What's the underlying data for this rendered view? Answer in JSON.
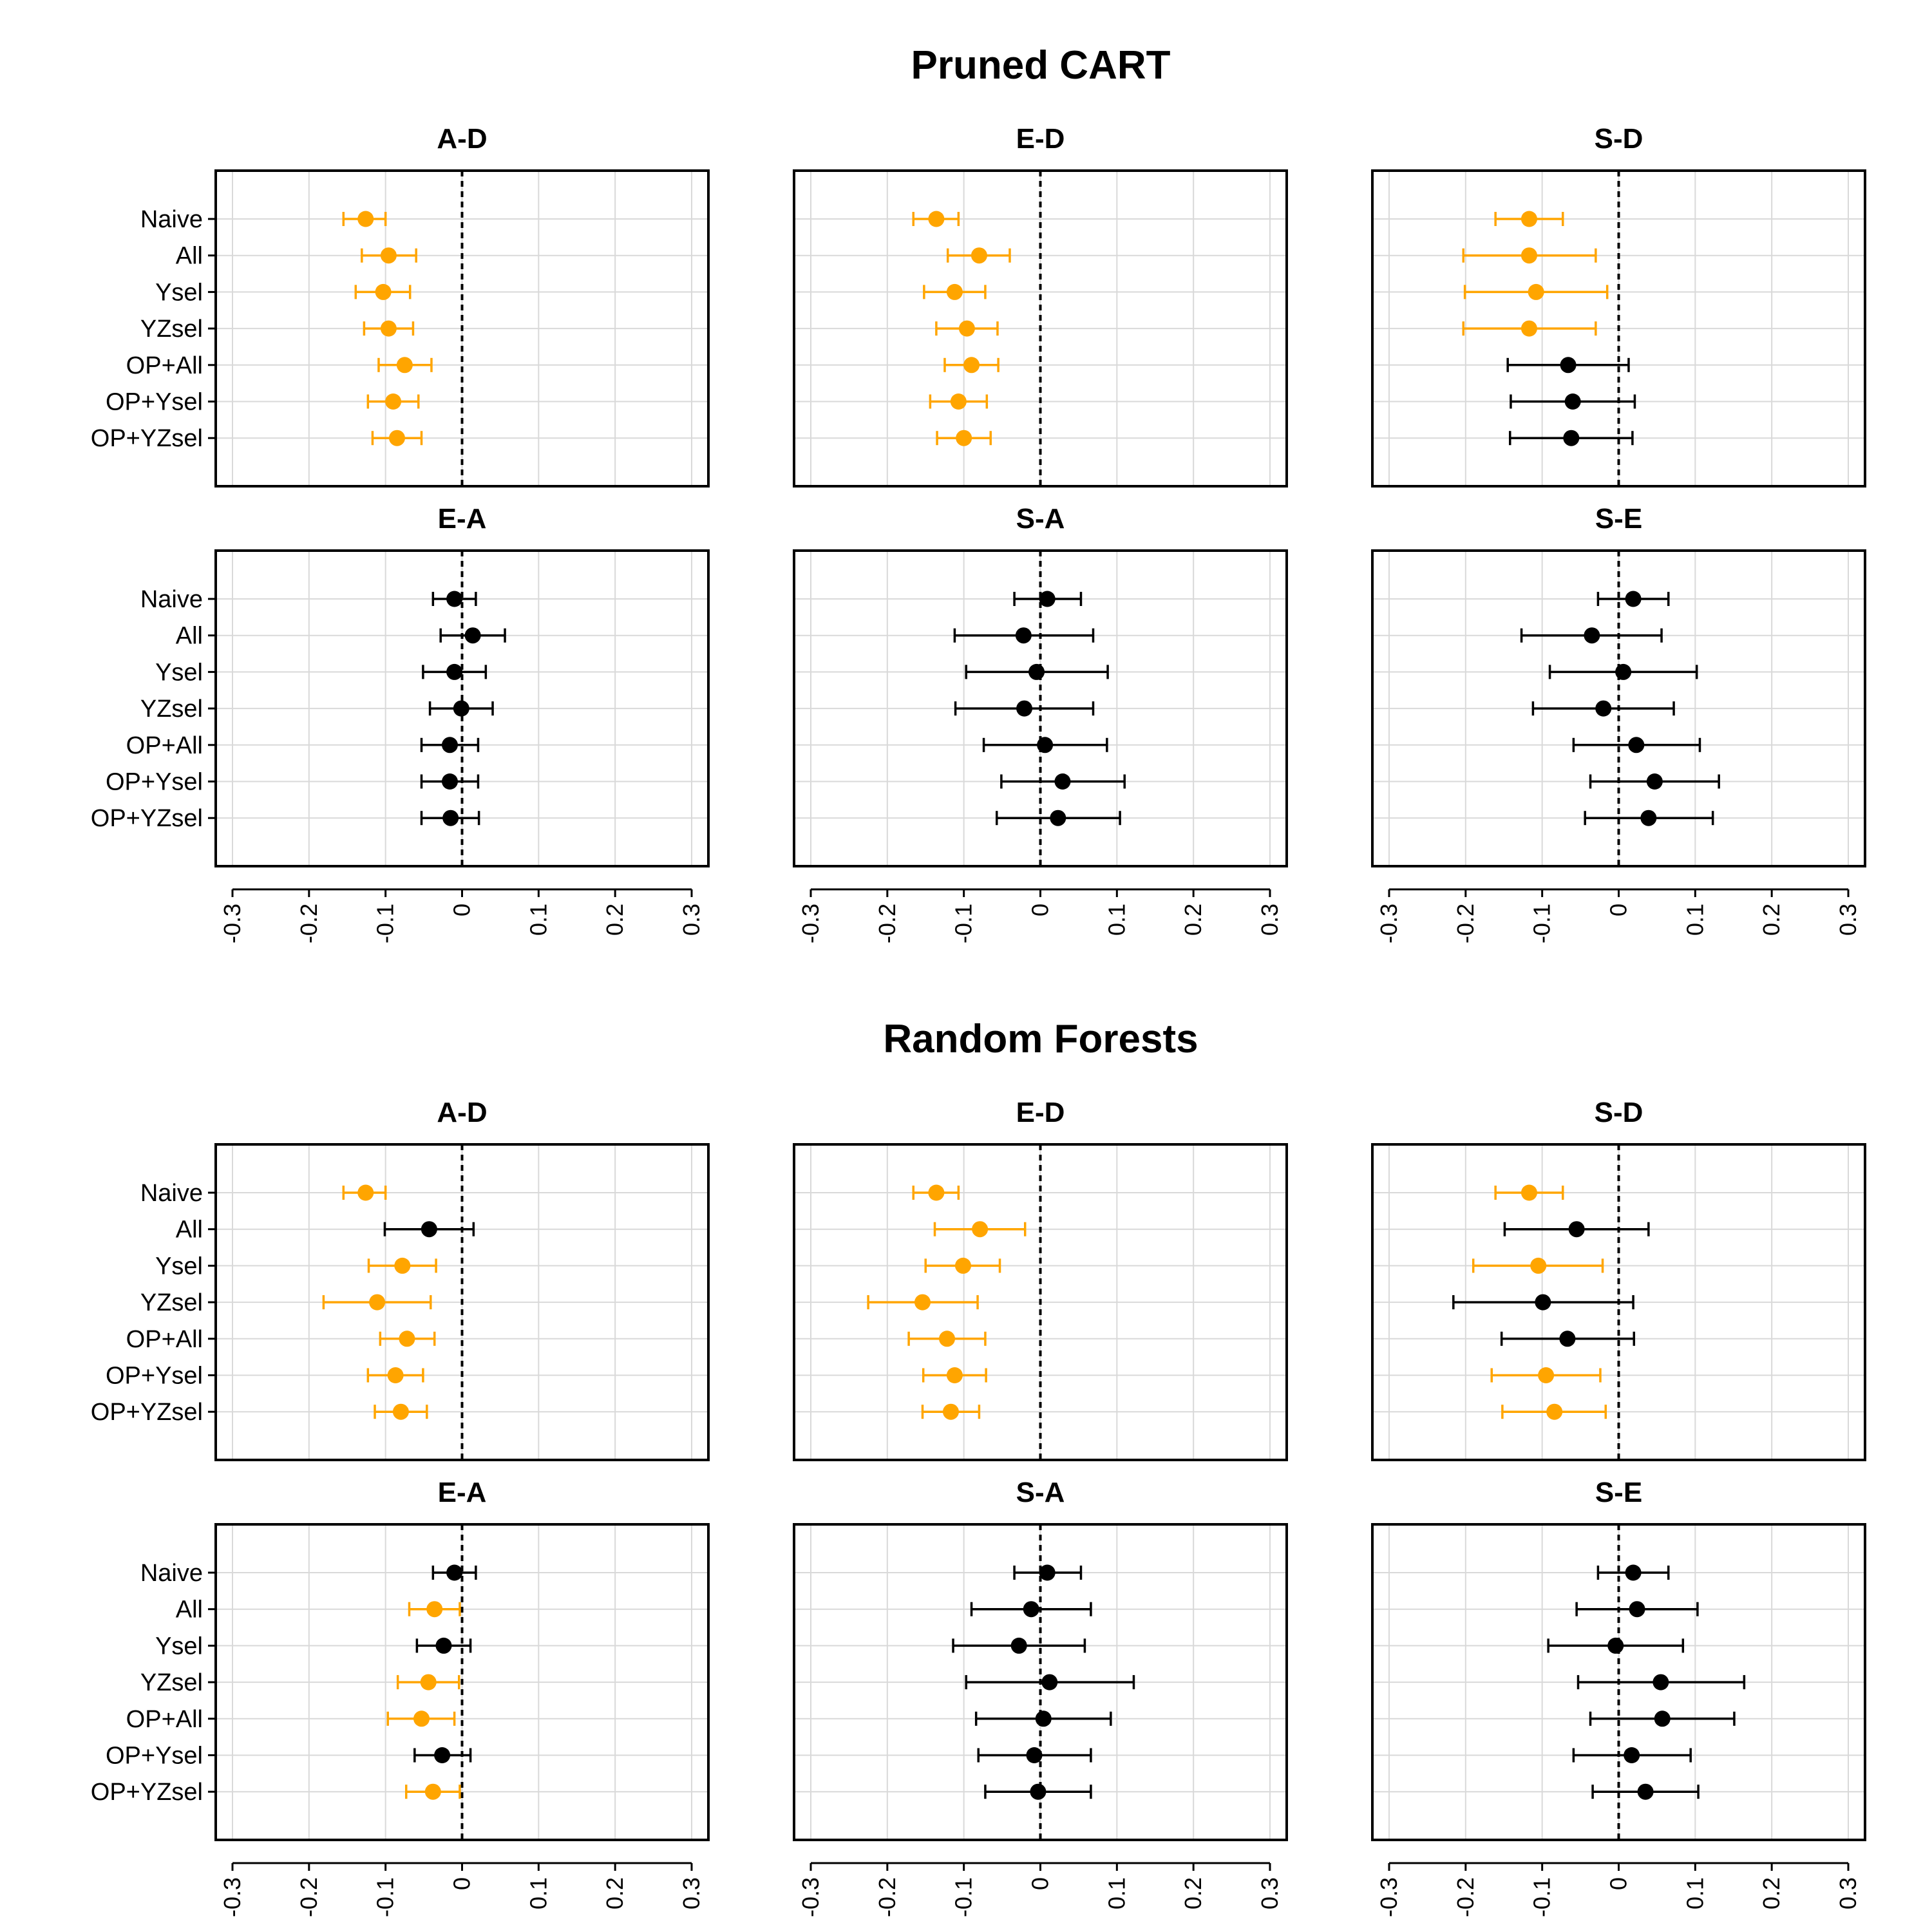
{
  "chart_data": {
    "type": "forest",
    "categories": [
      "Naive",
      "All",
      "Ysel",
      "YZsel",
      "OP+All",
      "OP+Ysel",
      "OP+YZsel"
    ],
    "xlim": [
      -0.3,
      0.3
    ],
    "xticks": [
      "-0.3",
      "-0.2",
      "-0.1",
      "0",
      "0.1",
      "0.2",
      "0.3"
    ],
    "reference_line": 0,
    "colors": {
      "significant": "#FFA500",
      "not_significant": "#000000",
      "grid": "#d9d9d9",
      "frame": "#000000"
    },
    "sections": [
      {
        "title": "Pruned CART",
        "panels": [
          {
            "title": "A-D",
            "points": [
              {
                "est": -0.126,
                "lo": -0.155,
                "hi": -0.1,
                "sig": true
              },
              {
                "est": -0.096,
                "lo": -0.131,
                "hi": -0.06,
                "sig": true
              },
              {
                "est": -0.103,
                "lo": -0.139,
                "hi": -0.068,
                "sig": true
              },
              {
                "est": -0.096,
                "lo": -0.128,
                "hi": -0.064,
                "sig": true
              },
              {
                "est": -0.075,
                "lo": -0.109,
                "hi": -0.04,
                "sig": true
              },
              {
                "est": -0.09,
                "lo": -0.123,
                "hi": -0.057,
                "sig": true
              },
              {
                "est": -0.085,
                "lo": -0.117,
                "hi": -0.053,
                "sig": true
              }
            ]
          },
          {
            "title": "E-D",
            "points": [
              {
                "est": -0.136,
                "lo": -0.166,
                "hi": -0.107,
                "sig": true
              },
              {
                "est": -0.08,
                "lo": -0.121,
                "hi": -0.04,
                "sig": true
              },
              {
                "est": -0.112,
                "lo": -0.152,
                "hi": -0.072,
                "sig": true
              },
              {
                "est": -0.096,
                "lo": -0.136,
                "hi": -0.056,
                "sig": true
              },
              {
                "est": -0.09,
                "lo": -0.125,
                "hi": -0.055,
                "sig": true
              },
              {
                "est": -0.107,
                "lo": -0.144,
                "hi": -0.07,
                "sig": true
              },
              {
                "est": -0.1,
                "lo": -0.135,
                "hi": -0.065,
                "sig": true
              }
            ]
          },
          {
            "title": "S-D",
            "points": [
              {
                "est": -0.117,
                "lo": -0.161,
                "hi": -0.073,
                "sig": true
              },
              {
                "est": -0.117,
                "lo": -0.203,
                "hi": -0.03,
                "sig": true
              },
              {
                "est": -0.108,
                "lo": -0.201,
                "hi": -0.015,
                "sig": true
              },
              {
                "est": -0.117,
                "lo": -0.203,
                "hi": -0.03,
                "sig": true
              },
              {
                "est": -0.066,
                "lo": -0.145,
                "hi": 0.013,
                "sig": false
              },
              {
                "est": -0.06,
                "lo": -0.141,
                "hi": 0.021,
                "sig": false
              },
              {
                "est": -0.062,
                "lo": -0.142,
                "hi": 0.018,
                "sig": false
              }
            ]
          },
          {
            "title": "E-A",
            "points": [
              {
                "est": -0.01,
                "lo": -0.038,
                "hi": 0.018,
                "sig": false
              },
              {
                "est": 0.014,
                "lo": -0.028,
                "hi": 0.056,
                "sig": false
              },
              {
                "est": -0.01,
                "lo": -0.051,
                "hi": 0.031,
                "sig": false
              },
              {
                "est": -0.001,
                "lo": -0.042,
                "hi": 0.04,
                "sig": false
              },
              {
                "est": -0.016,
                "lo": -0.053,
                "hi": 0.021,
                "sig": false
              },
              {
                "est": -0.016,
                "lo": -0.053,
                "hi": 0.021,
                "sig": false
              },
              {
                "est": -0.015,
                "lo": -0.053,
                "hi": 0.022,
                "sig": false
              }
            ]
          },
          {
            "title": "S-A",
            "points": [
              {
                "est": 0.009,
                "lo": -0.034,
                "hi": 0.053,
                "sig": false
              },
              {
                "est": -0.022,
                "lo": -0.112,
                "hi": 0.069,
                "sig": false
              },
              {
                "est": -0.005,
                "lo": -0.097,
                "hi": 0.088,
                "sig": false
              },
              {
                "est": -0.021,
                "lo": -0.111,
                "hi": 0.069,
                "sig": false
              },
              {
                "est": 0.006,
                "lo": -0.074,
                "hi": 0.087,
                "sig": false
              },
              {
                "est": 0.029,
                "lo": -0.051,
                "hi": 0.11,
                "sig": false
              },
              {
                "est": 0.023,
                "lo": -0.057,
                "hi": 0.104,
                "sig": false
              }
            ]
          },
          {
            "title": "S-E",
            "points": [
              {
                "est": 0.019,
                "lo": -0.027,
                "hi": 0.065,
                "sig": false
              },
              {
                "est": -0.035,
                "lo": -0.127,
                "hi": 0.056,
                "sig": false
              },
              {
                "est": 0.006,
                "lo": -0.09,
                "hi": 0.102,
                "sig": false
              },
              {
                "est": -0.02,
                "lo": -0.112,
                "hi": 0.072,
                "sig": false
              },
              {
                "est": 0.023,
                "lo": -0.059,
                "hi": 0.106,
                "sig": false
              },
              {
                "est": 0.047,
                "lo": -0.037,
                "hi": 0.131,
                "sig": false
              },
              {
                "est": 0.039,
                "lo": -0.044,
                "hi": 0.123,
                "sig": false
              }
            ]
          }
        ]
      },
      {
        "title": "Random Forests",
        "panels": [
          {
            "title": "A-D",
            "points": [
              {
                "est": -0.126,
                "lo": -0.155,
                "hi": -0.1,
                "sig": true
              },
              {
                "est": -0.043,
                "lo": -0.101,
                "hi": 0.015,
                "sig": false
              },
              {
                "est": -0.078,
                "lo": -0.122,
                "hi": -0.034,
                "sig": true
              },
              {
                "est": -0.111,
                "lo": -0.181,
                "hi": -0.041,
                "sig": true
              },
              {
                "est": -0.072,
                "lo": -0.107,
                "hi": -0.036,
                "sig": true
              },
              {
                "est": -0.087,
                "lo": -0.123,
                "hi": -0.051,
                "sig": true
              },
              {
                "est": -0.08,
                "lo": -0.114,
                "hi": -0.046,
                "sig": true
              }
            ]
          },
          {
            "title": "E-D",
            "points": [
              {
                "est": -0.136,
                "lo": -0.166,
                "hi": -0.107,
                "sig": true
              },
              {
                "est": -0.079,
                "lo": -0.138,
                "hi": -0.02,
                "sig": true
              },
              {
                "est": -0.101,
                "lo": -0.15,
                "hi": -0.053,
                "sig": true
              },
              {
                "est": -0.154,
                "lo": -0.225,
                "hi": -0.082,
                "sig": true
              },
              {
                "est": -0.122,
                "lo": -0.172,
                "hi": -0.072,
                "sig": true
              },
              {
                "est": -0.112,
                "lo": -0.153,
                "hi": -0.071,
                "sig": true
              },
              {
                "est": -0.117,
                "lo": -0.154,
                "hi": -0.08,
                "sig": true
              }
            ]
          },
          {
            "title": "S-D",
            "points": [
              {
                "est": -0.117,
                "lo": -0.161,
                "hi": -0.073,
                "sig": true
              },
              {
                "est": -0.055,
                "lo": -0.149,
                "hi": 0.039,
                "sig": false
              },
              {
                "est": -0.105,
                "lo": -0.19,
                "hi": -0.021,
                "sig": true
              },
              {
                "est": -0.099,
                "lo": -0.216,
                "hi": 0.019,
                "sig": false
              },
              {
                "est": -0.067,
                "lo": -0.153,
                "hi": 0.02,
                "sig": false
              },
              {
                "est": -0.095,
                "lo": -0.166,
                "hi": -0.024,
                "sig": true
              },
              {
                "est": -0.084,
                "lo": -0.152,
                "hi": -0.017,
                "sig": true
              }
            ]
          },
          {
            "title": "E-A",
            "points": [
              {
                "est": -0.01,
                "lo": -0.038,
                "hi": 0.018,
                "sig": false
              },
              {
                "est": -0.036,
                "lo": -0.069,
                "hi": -0.003,
                "sig": true
              },
              {
                "est": -0.024,
                "lo": -0.059,
                "hi": 0.011,
                "sig": false
              },
              {
                "est": -0.044,
                "lo": -0.084,
                "hi": -0.004,
                "sig": true
              },
              {
                "est": -0.053,
                "lo": -0.097,
                "hi": -0.01,
                "sig": true
              },
              {
                "est": -0.026,
                "lo": -0.062,
                "hi": 0.011,
                "sig": false
              },
              {
                "est": -0.038,
                "lo": -0.073,
                "hi": -0.003,
                "sig": true
              }
            ]
          },
          {
            "title": "S-A",
            "points": [
              {
                "est": 0.009,
                "lo": -0.034,
                "hi": 0.053,
                "sig": false
              },
              {
                "est": -0.012,
                "lo": -0.09,
                "hi": 0.066,
                "sig": false
              },
              {
                "est": -0.028,
                "lo": -0.114,
                "hi": 0.058,
                "sig": false
              },
              {
                "est": 0.012,
                "lo": -0.097,
                "hi": 0.122,
                "sig": false
              },
              {
                "est": 0.004,
                "lo": -0.084,
                "hi": 0.092,
                "sig": false
              },
              {
                "est": -0.008,
                "lo": -0.081,
                "hi": 0.066,
                "sig": false
              },
              {
                "est": -0.003,
                "lo": -0.072,
                "hi": 0.066,
                "sig": false
              }
            ]
          },
          {
            "title": "S-E",
            "points": [
              {
                "est": 0.019,
                "lo": -0.027,
                "hi": 0.065,
                "sig": false
              },
              {
                "est": 0.024,
                "lo": -0.055,
                "hi": 0.103,
                "sig": false
              },
              {
                "est": -0.004,
                "lo": -0.092,
                "hi": 0.084,
                "sig": false
              },
              {
                "est": 0.055,
                "lo": -0.053,
                "hi": 0.164,
                "sig": false
              },
              {
                "est": 0.057,
                "lo": -0.037,
                "hi": 0.151,
                "sig": false
              },
              {
                "est": 0.017,
                "lo": -0.059,
                "hi": 0.094,
                "sig": false
              },
              {
                "est": 0.035,
                "lo": -0.034,
                "hi": 0.104,
                "sig": false
              }
            ]
          }
        ]
      }
    ]
  }
}
